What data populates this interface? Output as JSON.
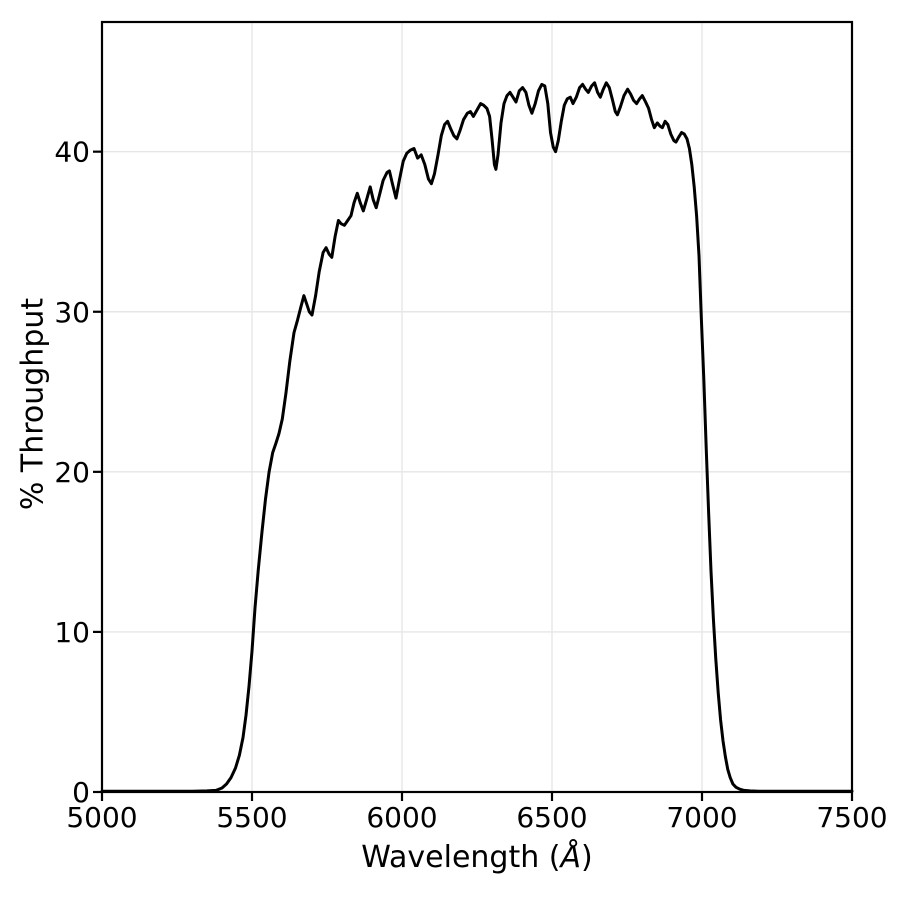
{
  "figure": {
    "background": "#ffffff",
    "text_color": "#000000"
  },
  "chart_data": {
    "type": "line",
    "title": "",
    "xlabel": "Wavelength (Å)",
    "xlabel_parts": {
      "prefix": "Wavelength (",
      "unit": "Å",
      "suffix": ")"
    },
    "ylabel": "% Throughput",
    "xlim": [
      5000,
      7500
    ],
    "ylim": [
      0,
      48.1
    ],
    "xticks": [
      5000,
      5500,
      6000,
      6500,
      7000,
      7500
    ],
    "yticks": [
      0,
      10,
      20,
      30,
      40
    ],
    "grid": true,
    "grid_color": "#e6e6e6",
    "legend_position": "none",
    "line_color": "#000000",
    "series": [
      {
        "name": "throughput",
        "x": [
          5000,
          5060,
          5120,
          5180,
          5240,
          5300,
          5350,
          5380,
          5400,
          5415,
          5430,
          5445,
          5458,
          5470,
          5480,
          5490,
          5500,
          5510,
          5521,
          5533,
          5545,
          5557,
          5569,
          5580,
          5590,
          5601,
          5613,
          5626,
          5640,
          5652,
          5663,
          5673,
          5682,
          5691,
          5700,
          5712,
          5724,
          5737,
          5747,
          5757,
          5766,
          5777,
          5788,
          5797,
          5808,
          5819,
          5830,
          5840,
          5851,
          5861,
          5871,
          5882,
          5894,
          5904,
          5914,
          5925,
          5937,
          5950,
          5958,
          5968,
          5980,
          5991,
          6004,
          6016,
          6028,
          6040,
          6052,
          6064,
          6076,
          6088,
          6098,
          6108,
          6120,
          6131,
          6142,
          6152,
          6163,
          6173,
          6183,
          6193,
          6205,
          6218,
          6228,
          6238,
          6250,
          6262,
          6272,
          6283,
          6292,
          6300,
          6308,
          6313,
          6320,
          6330,
          6340,
          6350,
          6360,
          6370,
          6380,
          6391,
          6402,
          6413,
          6423,
          6433,
          6444,
          6455,
          6466,
          6476,
          6486,
          6495,
          6504,
          6512,
          6521,
          6531,
          6541,
          6551,
          6561,
          6570,
          6581,
          6592,
          6602,
          6612,
          6621,
          6632,
          6642,
          6652,
          6661,
          6671,
          6681,
          6691,
          6702,
          6711,
          6718,
          6728,
          6740,
          6752,
          6762,
          6772,
          6782,
          6792,
          6801,
          6812,
          6822,
          6832,
          6841,
          6851,
          6860,
          6868,
          6877,
          6886,
          6896,
          6906,
          6913,
          6922,
          6932,
          6941,
          6950,
          6958,
          6966,
          6974,
          6982,
          6990,
          6998,
          7006,
          7014,
          7022,
          7030,
          7038,
          7046,
          7054,
          7062,
          7070,
          7078,
          7086,
          7094,
          7103,
          7113,
          7125,
          7140,
          7160,
          7190,
          7250,
          7350,
          7500
        ],
        "y": [
          0.05,
          0.05,
          0.05,
          0.05,
          0.05,
          0.05,
          0.07,
          0.1,
          0.25,
          0.5,
          0.9,
          1.5,
          2.3,
          3.4,
          4.8,
          6.6,
          8.8,
          11.5,
          13.9,
          16.2,
          18.3,
          20.0,
          21.2,
          21.8,
          22.4,
          23.3,
          24.9,
          26.9,
          28.7,
          29.5,
          30.3,
          31.0,
          30.5,
          30.0,
          29.8,
          31.0,
          32.5,
          33.7,
          34.0,
          33.6,
          33.4,
          34.7,
          35.7,
          35.5,
          35.4,
          35.7,
          36.0,
          36.8,
          37.4,
          36.8,
          36.3,
          37.0,
          37.8,
          37.0,
          36.5,
          37.3,
          38.2,
          38.7,
          38.8,
          38.0,
          37.1,
          38.2,
          39.4,
          39.9,
          40.1,
          40.2,
          39.6,
          39.8,
          39.2,
          38.3,
          38.0,
          38.6,
          39.8,
          41.0,
          41.7,
          41.9,
          41.4,
          41.0,
          40.8,
          41.3,
          42.0,
          42.4,
          42.5,
          42.2,
          42.6,
          43.0,
          42.9,
          42.7,
          42.2,
          40.8,
          39.2,
          38.9,
          39.8,
          41.8,
          43.0,
          43.5,
          43.7,
          43.4,
          43.1,
          43.8,
          44.0,
          43.7,
          42.9,
          42.4,
          43.0,
          43.8,
          44.2,
          44.1,
          43.0,
          41.2,
          40.3,
          40.0,
          40.7,
          41.9,
          42.9,
          43.3,
          43.4,
          43.0,
          43.4,
          44.0,
          44.2,
          43.9,
          43.7,
          44.1,
          44.3,
          43.7,
          43.4,
          43.9,
          44.3,
          44.0,
          43.2,
          42.5,
          42.3,
          42.8,
          43.5,
          43.9,
          43.6,
          43.2,
          43.0,
          43.3,
          43.5,
          43.1,
          42.7,
          42.0,
          41.5,
          41.8,
          41.6,
          41.5,
          41.9,
          41.7,
          41.1,
          40.7,
          40.6,
          40.9,
          41.2,
          41.1,
          40.8,
          40.2,
          39.2,
          37.8,
          36.0,
          33.5,
          29.5,
          25.8,
          21.5,
          17.5,
          13.8,
          10.8,
          8.3,
          6.2,
          4.5,
          3.2,
          2.2,
          1.4,
          0.9,
          0.5,
          0.3,
          0.18,
          0.1,
          0.07,
          0.05,
          0.05,
          0.05,
          0.05
        ]
      }
    ]
  }
}
